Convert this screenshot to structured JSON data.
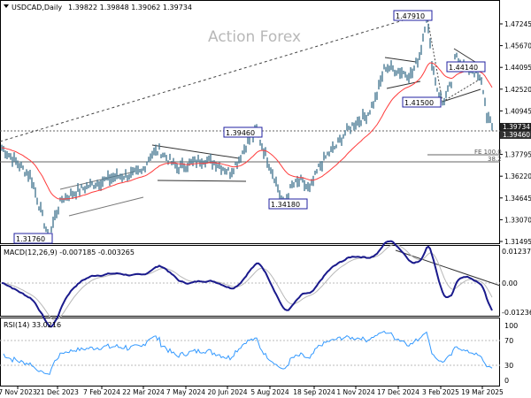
{
  "header": {
    "symbol": "USDCAD,Daily",
    "ohlc": "1.39822 1.39848 1.39062 1.39734"
  },
  "watermark": "Action Forex",
  "colors": {
    "price": "#4a7a93",
    "ma": "#ff3b3b",
    "macd": "#1a1a8c",
    "signal": "#b0b0b0",
    "rsi": "#3399ff",
    "label_border": "#2020a0"
  },
  "chart_data": [
    {
      "type": "line",
      "title": "USDCAD,Daily",
      "series": [
        {
          "values": [
            1.3841,
            1.3777,
            1.3713,
            1.3617,
            1.3393,
            1.3176,
            1.3329,
            1.3457,
            1.3489,
            1.3521,
            1.3553,
            1.3585,
            1.3617,
            1.363,
            1.3649,
            1.3777,
            1.3809,
            1.3745,
            1.3681,
            1.3713,
            1.3745,
            1.3713,
            1.3649,
            1.3745,
            1.3873,
            1.3946,
            1.3777,
            1.3617,
            1.3418,
            1.3553,
            1.3585,
            1.3521,
            1.3681,
            1.3777,
            1.3841,
            1.3937,
            1.4001,
            1.4065,
            1.4193,
            1.4417,
            1.4385,
            1.4353,
            1.4513,
            1.4791,
            1.4449,
            1.4225,
            1.415,
            1.4289,
            1.4513,
            1.4417,
            1.4385,
            1.4289,
            1.4065,
            1.3973
          ]
        }
      ],
      "y_ticks": [
        "1.47245",
        "1.45670",
        "1.44095",
        "1.42520",
        "1.40945",
        "1.37795",
        "1.36220",
        "1.34645",
        "1.33070",
        "1.31495"
      ],
      "current_price": "1.39734",
      "level_label": "1.39460",
      "annotations": [
        "1.47910",
        "1.44140",
        "1.41500",
        "1.39460",
        "1.34180",
        "1.31760",
        "FE 100.0",
        "38.2"
      ],
      "ylim": [
        1.3118,
        1.484
      ]
    },
    {
      "type": "line",
      "title": "MACD(12,26,9) -0.007185 -0.003265",
      "y_ticks": [
        "0.012375",
        "0.00",
        "-0.012367"
      ]
    },
    {
      "type": "line",
      "title": "RSI(14) 33.0216",
      "y_ticks": [
        "100",
        "70",
        "30",
        "0"
      ],
      "ylim": [
        0,
        100
      ]
    }
  ],
  "x_ticks": [
    "7 Nov 2023",
    "21 Dec 2023",
    "7 Feb 2024",
    "22 Mar 2024",
    "7 May 2024",
    "20 Jun 2024",
    "5 Aug 2024",
    "18 Sep 2024",
    "1 Nov 2024",
    "17 Dec 2024",
    "3 Feb 2025",
    "19 Mar 2025"
  ]
}
